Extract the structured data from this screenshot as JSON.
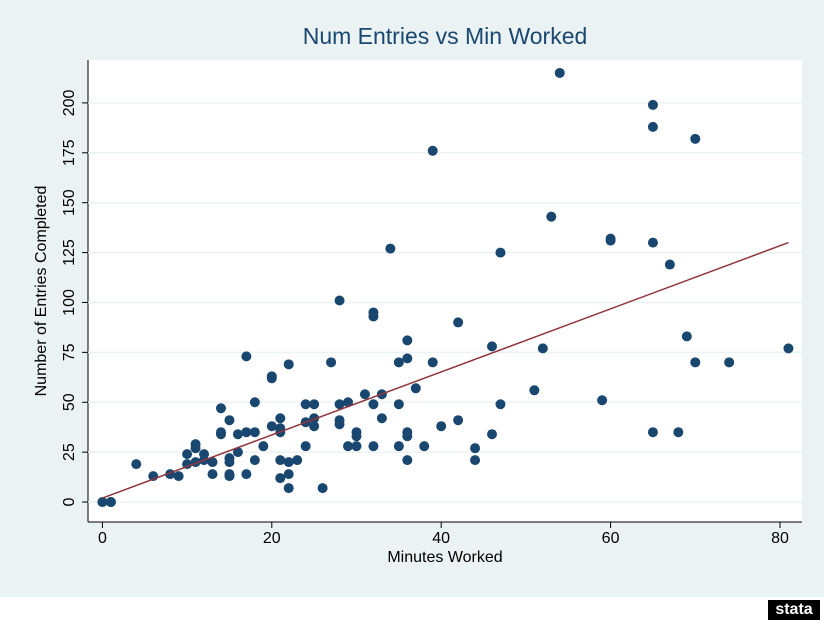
{
  "chart_data": {
    "type": "scatter",
    "title": "Num Entries vs Min Worked",
    "x_label": "Minutes Worked",
    "y_label": "Number of Entries Completed",
    "logo": "stata",
    "xlim": [
      -1.7,
      82.6
    ],
    "ylim": [
      -10,
      221.5
    ],
    "xticks": [
      0,
      20,
      40,
      60,
      80
    ],
    "yticks": [
      0,
      25,
      50,
      75,
      100,
      125,
      150,
      175,
      200
    ],
    "grid": true,
    "series": [
      {
        "type": "scatter",
        "color": "#1a476f",
        "x": [
          0,
          1,
          1,
          4,
          6,
          8,
          9,
          10,
          10,
          11,
          11,
          11,
          12,
          12,
          13,
          13,
          14,
          14,
          14,
          15,
          15,
          15,
          15,
          15,
          16,
          16,
          17,
          17,
          17,
          18,
          18,
          18,
          19,
          20,
          20,
          20,
          21,
          21,
          21,
          21,
          21,
          22,
          22,
          22,
          22,
          23,
          24,
          24,
          24,
          25,
          25,
          25,
          26,
          27,
          28,
          28,
          28,
          28,
          29,
          29,
          30,
          30,
          30,
          31,
          32,
          32,
          32,
          32,
          33,
          33,
          34,
          35,
          35,
          35,
          36,
          36,
          36,
          36,
          36,
          37,
          38,
          39,
          39,
          40,
          42,
          42,
          44,
          44,
          46,
          46,
          47,
          47,
          51,
          52,
          53,
          54,
          59,
          60,
          60,
          65,
          65,
          65,
          65,
          67,
          68,
          69,
          70,
          70,
          74,
          81
        ],
        "values": [
          0,
          0,
          0,
          19,
          13,
          14,
          13,
          24,
          19,
          29,
          27,
          20,
          24,
          21,
          20,
          14,
          35,
          34,
          47,
          41,
          22,
          20,
          14,
          13,
          25,
          34,
          73,
          35,
          14,
          50,
          35,
          21,
          28,
          62,
          63,
          38,
          37,
          35,
          42,
          21,
          12,
          69,
          20,
          14,
          7,
          21,
          40,
          49,
          28,
          49,
          42,
          38,
          7,
          70,
          101,
          49,
          41,
          39,
          50,
          28,
          35,
          33,
          28,
          54,
          95,
          93,
          49,
          28,
          54,
          42,
          127,
          70,
          49,
          28,
          81,
          72,
          35,
          33,
          21,
          57,
          28,
          176,
          70,
          38,
          90,
          41,
          27,
          21,
          78,
          34,
          125,
          49,
          56,
          77,
          143,
          215,
          51,
          132,
          131,
          199,
          188,
          130,
          35,
          119,
          35,
          83,
          182,
          70,
          70,
          77
        ]
      },
      {
        "type": "line",
        "color": "#90353b",
        "x": [
          0,
          81
        ],
        "values": [
          2,
          130
        ]
      }
    ]
  }
}
